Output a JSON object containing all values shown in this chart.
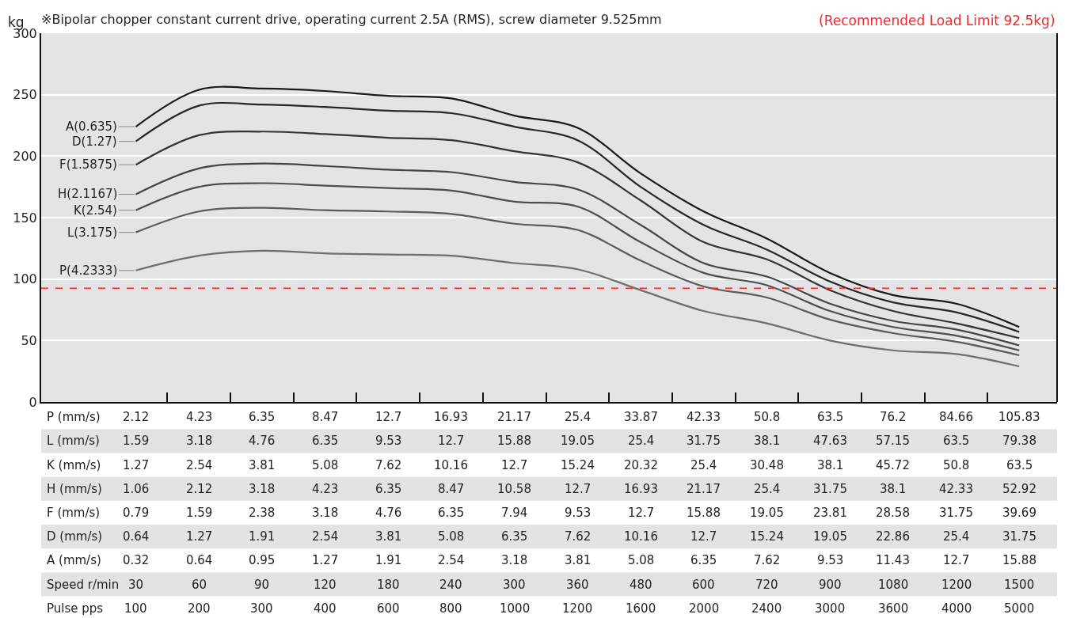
{
  "chart_data": {
    "type": "line",
    "title": "※Bipolar chopper constant current drive, operating current 2.5A (RMS), screw diameter 9.525mm",
    "ylabel": "kg",
    "categories": [
      "2.12\n1.59\n1.27\n1.06\n0.79\n0.64\n0.32\n30\n100",
      "4.23\n3.18\n2.54\n2.12\n1.59\n1.27\n0.64\n60\n200",
      "6.35\n4.76\n3.81\n3.18\n2.38\n1.91\n0.95\n90\n300",
      "8.47\n6.35\n5.08\n4.23\n3.18\n2.54\n1.27\n120\n400",
      "12.7\n9.53\n7.62\n6.35\n4.76\n3.81\n1.91\n180\n600",
      "16.93\n12.7\n10.16\n8.47\n6.35\n5.08\n2.54\n240\n800",
      "21.17\n15.88\n12.7\n10.58\n7.94\n6.35\n3.18\n300\n1000",
      "25.4\n19.05\n15.24\n12.7\n9.53\n7.62\n3.81\n360\n1200",
      "33.87\n25.4\n20.32\n16.93\n12.7\n10.16\n5.08\n480\n1600",
      "42.33\n31.75\n25.4\n21.17\n15.88\n12.7\n6.35\n600\n2000",
      "50.8\n38.1\n30.48\n25.4\n19.05\n15.24\n7.62\n720\n2400",
      "63.5\n47.63\n38.1\n31.75\n23.81\n19.05\n9.53\n900\n3000",
      "76.2\n57.15\n45.72\n38.1\n28.58\n22.86\n11.43\n1080\n3600",
      "84.66\n63.5\n50.8\n42.33\n31.75\n25.4\n12.7\n1200\n4000",
      "105.83\n79.38\n63.5\n52.92\n39.69\n31.75\n15.88\n1500\n5000"
    ],
    "annotations": [
      "P (mm/s)",
      "L (mm/s)",
      "K (mm/s)",
      "H (mm/s)",
      "F (mm/s)",
      "D (mm/s)",
      "A (mm/s)",
      "Speed r/min",
      "Pulse pps"
    ],
    "series": [
      {
        "name": "A(0.635)",
        "color": "#1a1a1a",
        "values": [
          224,
          254,
          255,
          253,
          249,
          247,
          233,
          223,
          186,
          155,
          133,
          105,
          87,
          80,
          61
        ]
      },
      {
        "name": "D(1.27)",
        "color": "#262626",
        "values": [
          212,
          241,
          242,
          240,
          237,
          235,
          224,
          213,
          175,
          144,
          124,
          98,
          81,
          73,
          57
        ]
      },
      {
        "name": "F(1.5875)",
        "color": "#333333",
        "values": [
          193,
          217,
          220,
          218,
          215,
          213,
          204,
          195,
          164,
          130,
          116,
          91,
          74,
          64,
          52
        ]
      },
      {
        "name": "H(2.1167)",
        "color": "#444444",
        "values": [
          169,
          190,
          194,
          192,
          189,
          187,
          179,
          173,
          144,
          113,
          102,
          80,
          66,
          59,
          46
        ]
      },
      {
        "name": "K(2.54)",
        "color": "#4d4d4d",
        "values": [
          156,
          175,
          178,
          176,
          174,
          172,
          163,
          159,
          130,
          105,
          95,
          74,
          61,
          54,
          42
        ]
      },
      {
        "name": "L(3.175)",
        "color": "#5a5a5a",
        "values": [
          138,
          155,
          158,
          156,
          155,
          153,
          145,
          140,
          115,
          94,
          85,
          67,
          56,
          49,
          38
        ]
      },
      {
        "name": "P(4.2333)",
        "color": "#6e6e6e",
        "values": [
          107,
          119,
          123,
          121,
          120,
          119,
          113,
          108,
          91,
          74,
          64,
          50,
          42,
          39,
          29
        ]
      }
    ],
    "ylim": [
      0,
      300
    ],
    "yticks": [
      0,
      50,
      100,
      150,
      200,
      250,
      300
    ],
    "grid": "y",
    "legend": false,
    "marker": "none",
    "line_style": "solid",
    "ref_lines": [
      {
        "axis": "y",
        "value": 92.5,
        "label": "(Recommended Load Limit 92.5kg)",
        "color": "#ee2a2a",
        "line_style": "dashed"
      }
    ]
  }
}
